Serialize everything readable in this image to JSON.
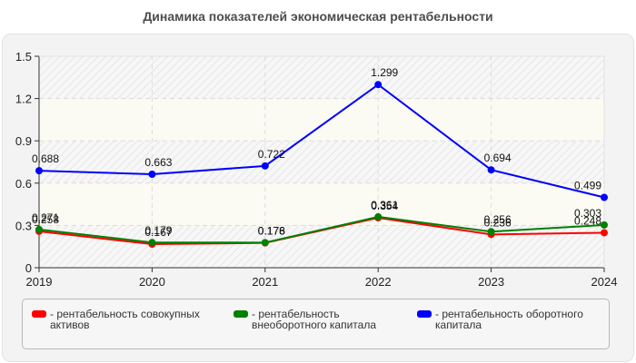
{
  "title": "Динамика показателей экономическая рентабельности",
  "legend": {
    "items": [
      {
        "label": "- рентабельность совокупных активов",
        "color": "#ff0000"
      },
      {
        "label": "- рентабельность внеоборотного капитала",
        "color": "#008000"
      },
      {
        "label": "- рентабельность оборотного капитала",
        "color": "#0000ff"
      }
    ]
  },
  "chart_data": {
    "type": "line",
    "title": "Динамика показателей экономическая рентабельности",
    "xlabel": "",
    "ylabel": "",
    "categories": [
      "2019",
      "2020",
      "2021",
      "2022",
      "2023",
      "2024"
    ],
    "yticks": [
      "0",
      "0.3",
      "0.6",
      "0.9",
      "1.2",
      "1.5"
    ],
    "ylim": [
      0,
      1.5
    ],
    "grid": true,
    "legend_position": "bottom",
    "series": [
      {
        "name": "рентабельность совокупных активов",
        "color": "#ff0000",
        "values": [
          0.258,
          0.167,
          0.176,
          0.354,
          0.236,
          0.248
        ]
      },
      {
        "name": "рентабельность внеоборотного капитала",
        "color": "#008000",
        "values": [
          0.271,
          0.179,
          0.178,
          0.361,
          0.256,
          0.303
        ]
      },
      {
        "name": "рентабельность оборотного капитала",
        "color": "#0000ff",
        "values": [
          0.688,
          0.663,
          0.722,
          1.299,
          0.694,
          0.499
        ]
      }
    ]
  }
}
